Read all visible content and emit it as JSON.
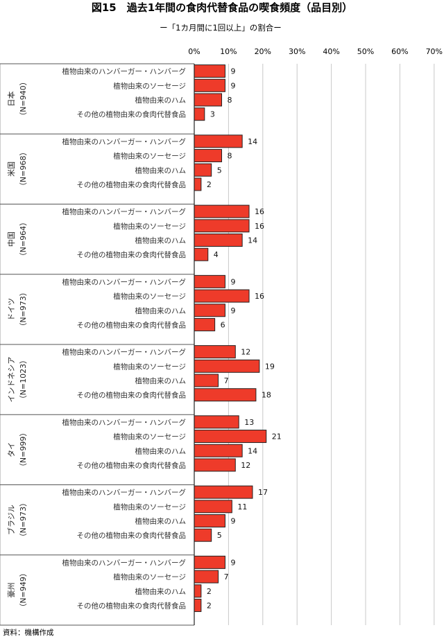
{
  "title": "図15　過去1年間の食肉代替食品の喫食頻度（品目別）",
  "subtitle": "ー「1カ月間に1回以上」の割合ー",
  "source": "資料：機構作成",
  "chart_data": {
    "type": "bar",
    "orientation": "horizontal",
    "x_ticks": [
      "0%",
      "10%",
      "20%",
      "30%",
      "40%",
      "50%",
      "60%",
      "70%"
    ],
    "xlim": [
      0,
      70
    ],
    "bar_color": "#ee3b2a",
    "categories": [
      "植物由来のハンバーガー・ハンバーグ",
      "植物由来のソーセージ",
      "植物由来のハム",
      "その他の植物由来の食肉代替食品"
    ],
    "groups": [
      {
        "name": "日本",
        "n": "（N=940）",
        "values": [
          9,
          9,
          8,
          3
        ]
      },
      {
        "name": "米国",
        "n": "（N=968）",
        "values": [
          14,
          8,
          5,
          2
        ]
      },
      {
        "name": "中国",
        "n": "（N=964）",
        "values": [
          16,
          16,
          14,
          4
        ]
      },
      {
        "name": "ドイツ",
        "n": "（N=973）",
        "values": [
          9,
          16,
          9,
          6
        ]
      },
      {
        "name": "インドネシア",
        "n": "（N=1023）",
        "values": [
          12,
          19,
          7,
          18
        ]
      },
      {
        "name": "タイ",
        "n": "（N=999）",
        "values": [
          13,
          21,
          14,
          12
        ]
      },
      {
        "name": "ブラジル",
        "n": "（N=973）",
        "values": [
          17,
          11,
          9,
          5
        ]
      },
      {
        "name": "豪州",
        "n": "（N=949）",
        "values": [
          9,
          7,
          2,
          2
        ]
      }
    ]
  }
}
